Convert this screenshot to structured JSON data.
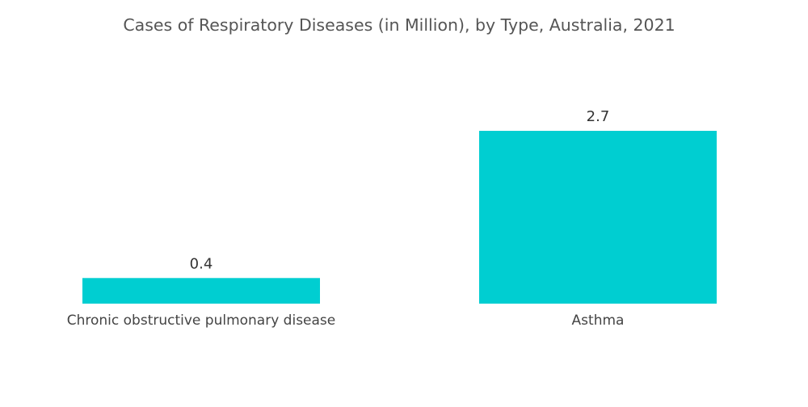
{
  "chart_data": {
    "type": "bar",
    "title": "Cases of Respiratory Diseases (in Million), by Type, Australia, 2021",
    "categories": [
      "Chronic obstructive pulmonary disease",
      "Asthma"
    ],
    "values": [
      0.4,
      2.7
    ],
    "value_labels": [
      "0.4",
      "2.7"
    ],
    "xlabel": "",
    "ylabel": "",
    "ylim": [
      0,
      2.7
    ],
    "grid": false,
    "bar_color": "#00CED1"
  }
}
